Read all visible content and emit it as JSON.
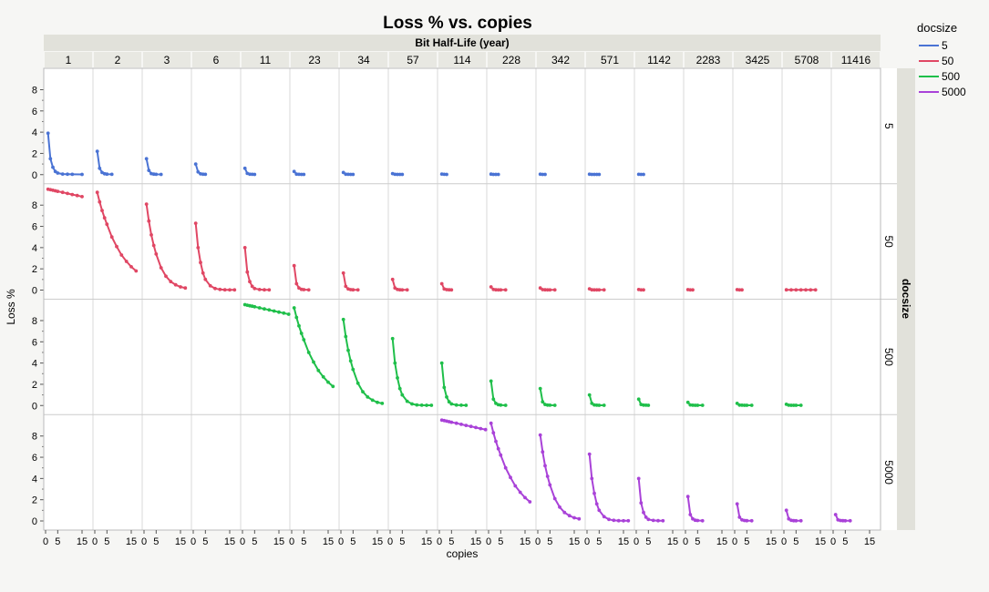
{
  "chart_data": {
    "type": "line",
    "title": "Loss % vs. copies",
    "column_facet_title": "Bit Half-Life (year)",
    "row_facet_title": "docsize",
    "xlabel": "copies",
    "ylabel": "Loss %",
    "x_ticks": [
      0,
      5,
      15
    ],
    "y_ticks": [
      0,
      2,
      4,
      6,
      8
    ],
    "ylim": [
      0,
      9.5
    ],
    "xlim": [
      0,
      18
    ],
    "grid": true,
    "legend": {
      "title": "docsize",
      "position": "top-right",
      "entries": [
        {
          "name": "5",
          "color": "#4a73d4"
        },
        {
          "name": "50",
          "color": "#e04764"
        },
        {
          "name": "500",
          "color": "#1fbf4a"
        },
        {
          "name": "5000",
          "color": "#a942d8"
        }
      ]
    },
    "half_life_columns": [
      "1",
      "2",
      "3",
      "6",
      "11",
      "23",
      "34",
      "57",
      "114",
      "228",
      "342",
      "571",
      "1142",
      "2283",
      "3425",
      "5708",
      "11416"
    ],
    "docsize_rows": [
      "5",
      "50",
      "500",
      "5000"
    ],
    "series": [
      {
        "name": "5",
        "color": "#4a73d4",
        "panels": [
          {
            "col": 0,
            "x": [
              1,
              2,
              3,
              4,
              5,
              7,
              9,
              11,
              15
            ],
            "y": [
              3.9,
              1.5,
              0.7,
              0.3,
              0.15,
              0.06,
              0.04,
              0.03,
              0.02
            ]
          },
          {
            "col": 1,
            "x": [
              1,
              2,
              3,
              4,
              5,
              7
            ],
            "y": [
              2.2,
              0.6,
              0.2,
              0.08,
              0.05,
              0.03
            ]
          },
          {
            "col": 2,
            "x": [
              1,
              2,
              3,
              4,
              5,
              7
            ],
            "y": [
              1.5,
              0.4,
              0.1,
              0.05,
              0.03,
              0.02
            ]
          },
          {
            "col": 3,
            "x": [
              1,
              2,
              3,
              4,
              5
            ],
            "y": [
              1.0,
              0.25,
              0.07,
              0.04,
              0.03
            ]
          },
          {
            "col": 4,
            "x": [
              1,
              2,
              3,
              4,
              5
            ],
            "y": [
              0.6,
              0.12,
              0.04,
              0.03,
              0.02
            ]
          },
          {
            "col": 5,
            "x": [
              1,
              2,
              3,
              4,
              5
            ],
            "y": [
              0.3,
              0.05,
              0.03,
              0.02,
              0.02
            ]
          },
          {
            "col": 6,
            "x": [
              1,
              2,
              3,
              4,
              5
            ],
            "y": [
              0.2,
              0.04,
              0.03,
              0.02,
              0.02
            ]
          },
          {
            "col": 7,
            "x": [
              1,
              2,
              3,
              4,
              5
            ],
            "y": [
              0.1,
              0.03,
              0.02,
              0.02,
              0.02
            ]
          },
          {
            "col": 8,
            "x": [
              1,
              2,
              3
            ],
            "y": [
              0.06,
              0.03,
              0.02
            ]
          },
          {
            "col": 9,
            "x": [
              1,
              2,
              3,
              4
            ],
            "y": [
              0.05,
              0.02,
              0.02,
              0.02
            ]
          },
          {
            "col": 10,
            "x": [
              1,
              2,
              3
            ],
            "y": [
              0.04,
              0.02,
              0.02
            ]
          },
          {
            "col": 11,
            "x": [
              1,
              2,
              3,
              4,
              5
            ],
            "y": [
              0.04,
              0.02,
              0.02,
              0.02,
              0.02
            ]
          },
          {
            "col": 12,
            "x": [
              1,
              2,
              3
            ],
            "y": [
              0.03,
              0.02,
              0.02
            ]
          }
        ]
      },
      {
        "name": "50",
        "color": "#e04764",
        "panels": [
          {
            "col": 0,
            "x": [
              1,
              2,
              3,
              4,
              5,
              7,
              9,
              11,
              13,
              15
            ],
            "y": [
              9.5,
              9.45,
              9.4,
              9.35,
              9.3,
              9.2,
              9.1,
              9.0,
              8.9,
              8.8
            ]
          },
          {
            "col": 1,
            "x": [
              1,
              2,
              3,
              4,
              5,
              7,
              9,
              11,
              13,
              15,
              17
            ],
            "y": [
              9.2,
              8.3,
              7.5,
              6.8,
              6.2,
              5.0,
              4.1,
              3.3,
              2.7,
              2.2,
              1.8
            ]
          },
          {
            "col": 2,
            "x": [
              1,
              2,
              3,
              4,
              5,
              7,
              9,
              11,
              13,
              15,
              17
            ],
            "y": [
              8.1,
              6.5,
              5.2,
              4.2,
              3.4,
              2.1,
              1.3,
              0.8,
              0.5,
              0.3,
              0.2
            ]
          },
          {
            "col": 3,
            "x": [
              1,
              2,
              3,
              4,
              5,
              7,
              9,
              11,
              13,
              15,
              17
            ],
            "y": [
              6.3,
              4.0,
              2.6,
              1.6,
              1.0,
              0.4,
              0.15,
              0.06,
              0.03,
              0.02,
              0.02
            ]
          },
          {
            "col": 4,
            "x": [
              1,
              2,
              3,
              4,
              5,
              7,
              9,
              11
            ],
            "y": [
              4.0,
              1.7,
              0.8,
              0.35,
              0.15,
              0.05,
              0.03,
              0.02
            ]
          },
          {
            "col": 5,
            "x": [
              1,
              2,
              3,
              4,
              5,
              7
            ],
            "y": [
              2.3,
              0.6,
              0.2,
              0.07,
              0.04,
              0.02
            ]
          },
          {
            "col": 6,
            "x": [
              1,
              2,
              3,
              4,
              5,
              7
            ],
            "y": [
              1.6,
              0.35,
              0.1,
              0.04,
              0.03,
              0.02
            ]
          },
          {
            "col": 7,
            "x": [
              1,
              2,
              3,
              4,
              5,
              7
            ],
            "y": [
              1.0,
              0.2,
              0.06,
              0.03,
              0.02,
              0.02
            ]
          },
          {
            "col": 8,
            "x": [
              1,
              2,
              3,
              4,
              5
            ],
            "y": [
              0.6,
              0.1,
              0.04,
              0.03,
              0.02
            ]
          },
          {
            "col": 9,
            "x": [
              1,
              2,
              3,
              4,
              5,
              7
            ],
            "y": [
              0.3,
              0.06,
              0.03,
              0.02,
              0.02,
              0.02
            ]
          },
          {
            "col": 10,
            "x": [
              1,
              2,
              3,
              4,
              5,
              7
            ],
            "y": [
              0.2,
              0.04,
              0.03,
              0.02,
              0.02,
              0.02
            ]
          },
          {
            "col": 11,
            "x": [
              1,
              2,
              3,
              4,
              5,
              7
            ],
            "y": [
              0.12,
              0.03,
              0.02,
              0.02,
              0.02,
              0.02
            ]
          },
          {
            "col": 12,
            "x": [
              1,
              2,
              3
            ],
            "y": [
              0.05,
              0.02,
              0.02
            ]
          },
          {
            "col": 13,
            "x": [
              1,
              2,
              3
            ],
            "y": [
              0.04,
              0.02,
              0.02
            ]
          },
          {
            "col": 14,
            "x": [
              1,
              2,
              3
            ],
            "y": [
              0.04,
              0.02,
              0.02
            ]
          },
          {
            "col": 15,
            "x": [
              1,
              3,
              5,
              7,
              9,
              11,
              13
            ],
            "y": [
              0.03,
              0.02,
              0.02,
              0.02,
              0.02,
              0.02,
              0.02
            ]
          }
        ]
      },
      {
        "name": "500",
        "color": "#1fbf4a",
        "panels": [
          {
            "col": 4,
            "x": [
              1,
              2,
              3,
              4,
              5,
              7,
              9,
              11,
              13,
              15,
              17,
              19
            ],
            "y": [
              9.5,
              9.45,
              9.4,
              9.35,
              9.3,
              9.2,
              9.1,
              9.0,
              8.9,
              8.8,
              8.7,
              8.6
            ]
          },
          {
            "col": 5,
            "x": [
              1,
              2,
              3,
              4,
              5,
              7,
              9,
              11,
              13,
              15,
              17
            ],
            "y": [
              9.2,
              8.3,
              7.5,
              6.8,
              6.2,
              5.0,
              4.1,
              3.3,
              2.7,
              2.2,
              1.8
            ]
          },
          {
            "col": 6,
            "x": [
              1,
              2,
              3,
              4,
              5,
              7,
              9,
              11,
              13,
              15,
              17
            ],
            "y": [
              8.1,
              6.5,
              5.2,
              4.2,
              3.4,
              2.1,
              1.3,
              0.8,
              0.5,
              0.3,
              0.2
            ]
          },
          {
            "col": 7,
            "x": [
              1,
              2,
              3,
              4,
              5,
              7,
              9,
              11,
              13,
              15,
              17
            ],
            "y": [
              6.3,
              4.0,
              2.6,
              1.6,
              1.0,
              0.4,
              0.15,
              0.06,
              0.03,
              0.02,
              0.02
            ]
          },
          {
            "col": 8,
            "x": [
              1,
              2,
              3,
              4,
              5,
              7,
              9,
              11
            ],
            "y": [
              4.0,
              1.7,
              0.8,
              0.35,
              0.15,
              0.05,
              0.03,
              0.02
            ]
          },
          {
            "col": 9,
            "x": [
              1,
              2,
              3,
              4,
              5,
              7
            ],
            "y": [
              2.3,
              0.6,
              0.2,
              0.07,
              0.04,
              0.02
            ]
          },
          {
            "col": 10,
            "x": [
              1,
              2,
              3,
              4,
              5,
              7
            ],
            "y": [
              1.6,
              0.35,
              0.1,
              0.04,
              0.03,
              0.02
            ]
          },
          {
            "col": 11,
            "x": [
              1,
              2,
              3,
              4,
              5,
              7
            ],
            "y": [
              1.0,
              0.2,
              0.06,
              0.03,
              0.02,
              0.02
            ]
          },
          {
            "col": 12,
            "x": [
              1,
              2,
              3,
              4,
              5
            ],
            "y": [
              0.6,
              0.1,
              0.04,
              0.03,
              0.02
            ]
          },
          {
            "col": 13,
            "x": [
              1,
              2,
              3,
              4,
              5,
              7
            ],
            "y": [
              0.3,
              0.06,
              0.03,
              0.02,
              0.02,
              0.02
            ]
          },
          {
            "col": 14,
            "x": [
              1,
              2,
              3,
              4,
              5,
              7
            ],
            "y": [
              0.2,
              0.04,
              0.03,
              0.02,
              0.02,
              0.02
            ]
          },
          {
            "col": 15,
            "x": [
              1,
              2,
              3,
              4,
              5,
              7
            ],
            "y": [
              0.12,
              0.03,
              0.02,
              0.02,
              0.02,
              0.02
            ]
          }
        ]
      },
      {
        "name": "5000",
        "color": "#a942d8",
        "panels": [
          {
            "col": 8,
            "x": [
              1,
              2,
              3,
              4,
              5,
              7,
              9,
              11,
              13,
              15,
              17,
              19
            ],
            "y": [
              9.5,
              9.45,
              9.4,
              9.35,
              9.3,
              9.2,
              9.1,
              9.0,
              8.9,
              8.8,
              8.7,
              8.6
            ]
          },
          {
            "col": 9,
            "x": [
              1,
              2,
              3,
              4,
              5,
              7,
              9,
              11,
              13,
              15,
              17
            ],
            "y": [
              9.2,
              8.3,
              7.5,
              6.8,
              6.2,
              5.0,
              4.1,
              3.3,
              2.7,
              2.2,
              1.8
            ]
          },
          {
            "col": 10,
            "x": [
              1,
              2,
              3,
              4,
              5,
              7,
              9,
              11,
              13,
              15,
              17
            ],
            "y": [
              8.1,
              6.5,
              5.2,
              4.2,
              3.4,
              2.1,
              1.3,
              0.8,
              0.5,
              0.3,
              0.2
            ]
          },
          {
            "col": 11,
            "x": [
              1,
              2,
              3,
              4,
              5,
              7,
              9,
              11,
              13,
              15,
              17
            ],
            "y": [
              6.3,
              4.0,
              2.6,
              1.6,
              1.0,
              0.4,
              0.15,
              0.06,
              0.03,
              0.02,
              0.02
            ]
          },
          {
            "col": 12,
            "x": [
              1,
              2,
              3,
              4,
              5,
              7,
              9,
              11
            ],
            "y": [
              4.0,
              1.7,
              0.8,
              0.35,
              0.15,
              0.05,
              0.03,
              0.02
            ]
          },
          {
            "col": 13,
            "x": [
              1,
              2,
              3,
              4,
              5,
              7
            ],
            "y": [
              2.3,
              0.6,
              0.2,
              0.07,
              0.04,
              0.02
            ]
          },
          {
            "col": 14,
            "x": [
              1,
              2,
              3,
              4,
              5,
              7
            ],
            "y": [
              1.6,
              0.35,
              0.1,
              0.04,
              0.03,
              0.02
            ]
          },
          {
            "col": 15,
            "x": [
              1,
              2,
              3,
              4,
              5,
              7
            ],
            "y": [
              1.0,
              0.2,
              0.06,
              0.03,
              0.02,
              0.02
            ]
          },
          {
            "col": 16,
            "x": [
              1,
              2,
              3,
              4,
              5,
              7
            ],
            "y": [
              0.6,
              0.1,
              0.04,
              0.03,
              0.02,
              0.02
            ]
          }
        ]
      }
    ]
  }
}
